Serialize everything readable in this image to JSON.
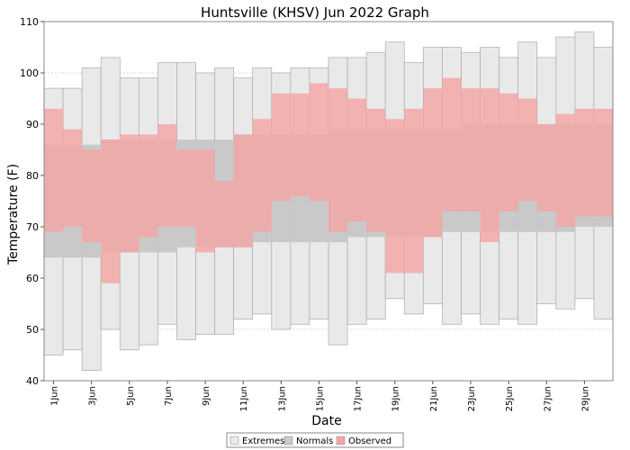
{
  "chart_data": {
    "type": "bar",
    "title": "Huntsville (KHSV) Jun 2022 Graph",
    "xlabel": "Date",
    "ylabel": "Temperature (F)",
    "ylim": [
      40,
      110
    ],
    "yticks": [
      40,
      50,
      60,
      70,
      80,
      90,
      100,
      110
    ],
    "grid": true,
    "legend_position": "bottom-center",
    "x_tick_labels": [
      "1Jun",
      "3Jun",
      "5Jun",
      "7Jun",
      "9Jun",
      "11Jun",
      "13Jun",
      "15Jun",
      "17Jun",
      "19Jun",
      "21Jun",
      "23Jun",
      "25Jun",
      "27Jun",
      "29Jun"
    ],
    "days": [
      1,
      2,
      3,
      4,
      5,
      6,
      7,
      8,
      9,
      10,
      11,
      12,
      13,
      14,
      15,
      16,
      17,
      18,
      19,
      20,
      21,
      22,
      23,
      24,
      25,
      26,
      27,
      28,
      29,
      30
    ],
    "series": [
      {
        "name": "Extremes",
        "color": "#e9e9e9",
        "low": [
          45,
          46,
          42,
          50,
          46,
          47,
          51,
          48,
          49,
          49,
          52,
          53,
          50,
          51,
          52,
          47,
          51,
          52,
          56,
          53,
          55,
          51,
          53,
          51,
          52,
          51,
          55,
          54,
          56,
          52
        ],
        "high": [
          97,
          97,
          101,
          103,
          99,
          99,
          102,
          102,
          100,
          101,
          99,
          101,
          100,
          101,
          101,
          103,
          103,
          104,
          106,
          102,
          105,
          105,
          104,
          105,
          103,
          106,
          103,
          107,
          108,
          105
        ]
      },
      {
        "name": "Normals",
        "color": "#c9c9c9",
        "low": [
          64,
          64,
          64,
          65,
          65,
          65,
          65,
          66,
          66,
          66,
          66,
          67,
          67,
          67,
          67,
          67,
          68,
          68,
          68,
          68,
          68,
          69,
          69,
          69,
          69,
          69,
          69,
          69,
          70,
          70
        ],
        "high": [
          86,
          86,
          86,
          87,
          87,
          87,
          87,
          87,
          87,
          87,
          88,
          88,
          88,
          88,
          88,
          89,
          89,
          89,
          89,
          89,
          89,
          89,
          90,
          90,
          90,
          90,
          90,
          90,
          90,
          90
        ]
      },
      {
        "name": "Observed",
        "color": "#f4a6a6",
        "low": [
          69,
          70,
          67,
          59,
          65,
          68,
          70,
          70,
          65,
          66,
          66,
          69,
          75,
          76,
          75,
          69,
          71,
          69,
          61,
          61,
          68,
          73,
          73,
          67,
          73,
          75,
          73,
          70,
          72,
          72
        ],
        "high": [
          93,
          89,
          85,
          87,
          88,
          88,
          90,
          85,
          85,
          79,
          88,
          91,
          96,
          96,
          98,
          97,
          95,
          93,
          91,
          93,
          97,
          99,
          97,
          97,
          96,
          95,
          90,
          92,
          93,
          93
        ]
      }
    ]
  }
}
